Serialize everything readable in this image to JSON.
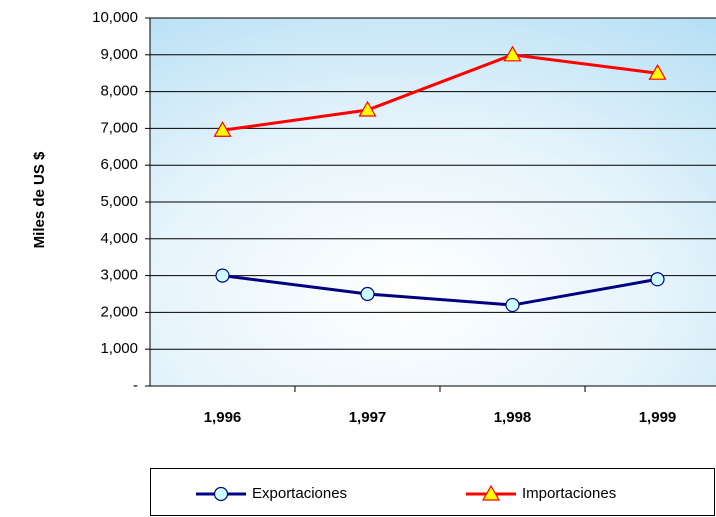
{
  "chart_data": {
    "type": "line",
    "y_label": "Miles de US $",
    "categories": [
      "1,996",
      "1,997",
      "1,998",
      "1,999"
    ],
    "series": [
      {
        "name": "Exportaciones",
        "color": "#000080",
        "values": [
          3000,
          2500,
          2200,
          2900
        ]
      },
      {
        "name": "Importaciones",
        "color": "#ff0000",
        "values": [
          6950,
          7500,
          9000,
          8500
        ]
      }
    ],
    "ylim": [
      0,
      10000
    ],
    "yticks": [
      {
        "value": 0,
        "label": "-"
      },
      {
        "value": 1000,
        "label": "1,000"
      },
      {
        "value": 2000,
        "label": "2,000"
      },
      {
        "value": 3000,
        "label": "3,000"
      },
      {
        "value": 4000,
        "label": "4,000"
      },
      {
        "value": 5000,
        "label": "5,000"
      },
      {
        "value": 6000,
        "label": "6,000"
      },
      {
        "value": 7000,
        "label": "7,000"
      },
      {
        "value": 8000,
        "label": "8,000"
      },
      {
        "value": 9000,
        "label": "9,000"
      },
      {
        "value": 10000,
        "label": "10,000"
      }
    ],
    "grid": true
  }
}
